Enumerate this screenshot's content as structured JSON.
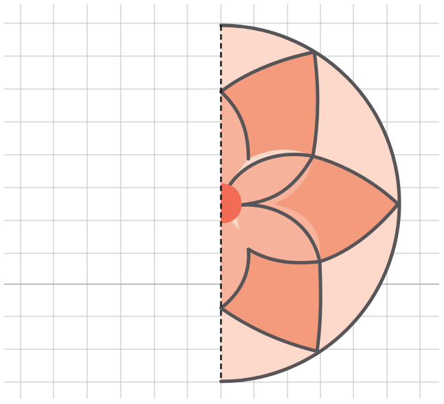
{
  "diagram": {
    "grid": {
      "visible": true,
      "line_color": "#bdbdbd",
      "axis_color": "#a9a9a9"
    },
    "shape": {
      "type": "half-lotus",
      "outline_color": "#575557",
      "mirror_line": "dashed",
      "colors": {
        "background_half_disc": "#fcd9cb",
        "outer_petals": "#f59b7d",
        "inner_petals": "#f6b29b",
        "center": "#f26b55"
      }
    }
  }
}
